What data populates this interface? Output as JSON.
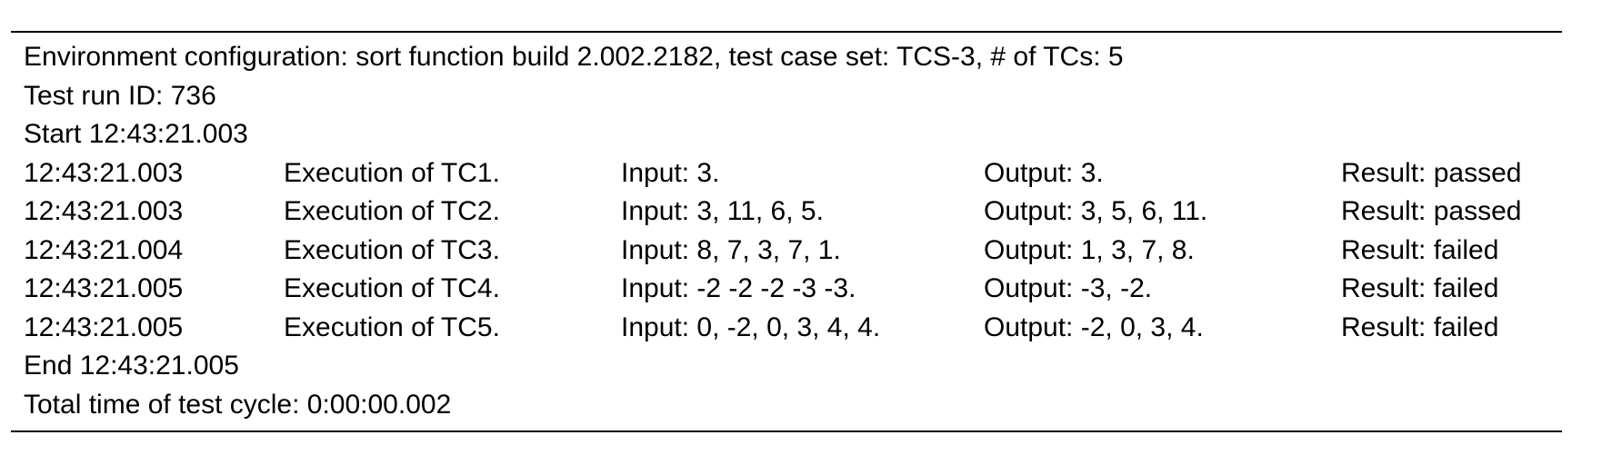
{
  "header": {
    "environment": "Environment configuration: sort function build 2.002.2182, test case set: TCS-3, # of TCs: 5",
    "run_id": "Test run ID: 736",
    "start": "Start 12:43:21.003"
  },
  "rows": [
    {
      "time": "12:43:21.003",
      "execution": "Execution of TC1.",
      "input": "Input: 3.",
      "output": "Output: 3.",
      "result": "Result: passed"
    },
    {
      "time": "12:43:21.003",
      "execution": "Execution of TC2.",
      "input": "Input: 3, 11, 6, 5.",
      "output": "Output: 3, 5, 6, 11.",
      "result": "Result: passed"
    },
    {
      "time": "12:43:21.004",
      "execution": "Execution of TC3.",
      "input": "Input: 8, 7, 3, 7, 1.",
      "output": "Output: 1, 3, 7, 8.",
      "result": "Result: failed"
    },
    {
      "time": "12:43:21.005",
      "execution": "Execution of TC4.",
      "input": "Input: -2 -2 -2 -3 -3.",
      "output": "Output: -3, -2.",
      "result": "Result: failed"
    },
    {
      "time": "12:43:21.005",
      "execution": "Execution of TC5.",
      "input": "Input: 0, -2, 0, 3, 4, 4.",
      "output": "Output: -2, 0, 3, 4.",
      "result": "Result: failed"
    }
  ],
  "footer": {
    "end": "End 12:43:21.005",
    "total": "Total time of test cycle: 0:00:00.002"
  }
}
